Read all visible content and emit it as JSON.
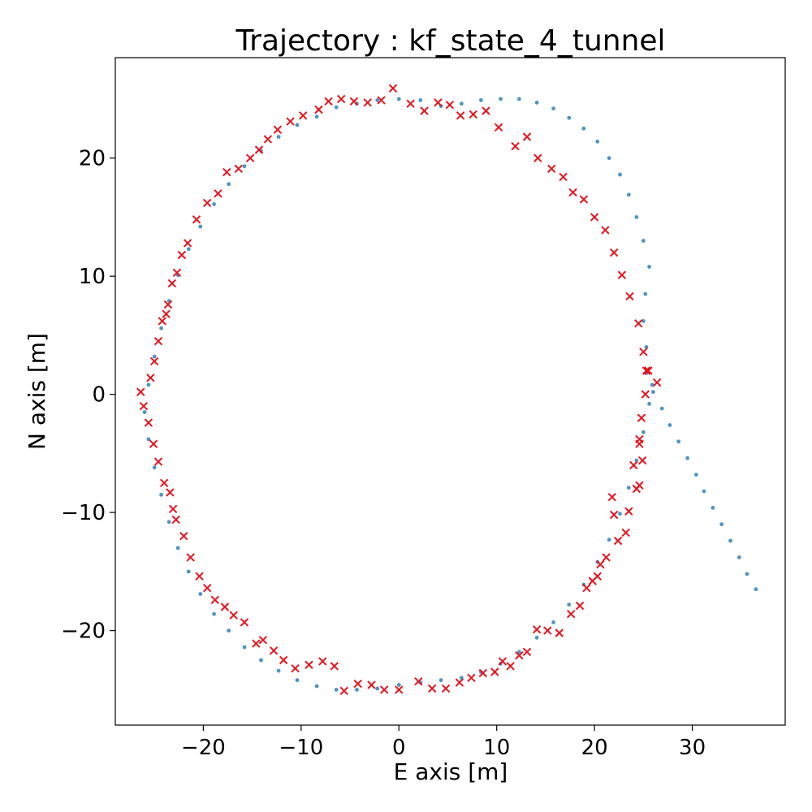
{
  "chart_data": {
    "type": "scatter",
    "title": "Trajectory : kf_state_4_tunnel",
    "xlabel": "E axis [m]",
    "ylabel": "N axis [m]",
    "xlim": [
      -29,
      39.5
    ],
    "ylim": [
      -28,
      28.5
    ],
    "xticks": [
      -20,
      -10,
      0,
      10,
      20,
      30
    ],
    "yticks": [
      -20,
      -10,
      0,
      10,
      20
    ],
    "xtick_labels": [
      "−20",
      "−10",
      "0",
      "10",
      "20",
      "30"
    ],
    "ytick_labels": [
      "−20",
      "−10",
      "0",
      "10",
      "20"
    ],
    "grid": false,
    "colors": {
      "estimate": "#4f94c4",
      "measurement": "#e8141e"
    },
    "series": [
      {
        "marker": "dot",
        "x": [
          36.5,
          35.6,
          34.8,
          33.9,
          33.0,
          32.1,
          31.2,
          30.4,
          29.5,
          28.6,
          27.7,
          26.9,
          26.0,
          25.3,
          25.3,
          25.0,
          25.2,
          25.6,
          25.0,
          24.3,
          23.5,
          22.6,
          21.5,
          20.3,
          18.9,
          17.4,
          15.8,
          14.1,
          12.3,
          10.4,
          8.4,
          6.4,
          4.3,
          2.2,
          0.0,
          -2.2,
          -4.3,
          -6.4,
          -8.4,
          -10.4,
          -12.3,
          -14.1,
          -15.8,
          -17.4,
          -18.9,
          -20.3,
          -21.5,
          -22.6,
          -23.5,
          -24.3,
          -25.0,
          -25.6,
          -26.0,
          -25.6,
          -25.0,
          -24.3,
          -23.5,
          -22.6,
          -21.5,
          -20.3,
          -18.9,
          -17.4,
          -15.8,
          -14.1,
          -12.3,
          -10.4,
          -8.4,
          -6.4,
          -4.3,
          -2.2,
          0.0,
          2.2,
          4.3,
          6.4,
          8.4,
          10.4,
          12.3,
          14.1,
          15.8,
          17.4,
          18.9,
          20.3,
          21.5,
          22.6,
          23.5,
          24.3,
          25.0,
          25.6,
          25.9
        ],
        "y": [
          -16.5,
          -15.2,
          -13.8,
          -12.4,
          -11.0,
          -9.6,
          -8.2,
          -6.8,
          -5.4,
          -4.0,
          -2.6,
          -1.2,
          0.2,
          1.8,
          4.0,
          6.2,
          8.5,
          10.8,
          13.0,
          15.0,
          16.9,
          18.6,
          20.0,
          21.4,
          22.5,
          23.4,
          24.2,
          24.7,
          25.0,
          25.0,
          24.9,
          24.6,
          24.4,
          24.9,
          25.0,
          24.9,
          24.6,
          24.3,
          23.5,
          22.8,
          21.8,
          20.6,
          19.3,
          17.8,
          16.1,
          14.2,
          12.3,
          10.1,
          7.9,
          5.6,
          3.2,
          0.8,
          -1.5,
          -3.8,
          -6.2,
          -8.5,
          -10.8,
          -13.0,
          -15.0,
          -16.9,
          -18.6,
          -20.0,
          -21.4,
          -22.5,
          -23.4,
          -24.2,
          -24.7,
          -25.0,
          -25.0,
          -24.9,
          -24.6,
          -24.4,
          -24.2,
          -24.0,
          -23.5,
          -22.8,
          -21.8,
          -20.6,
          -19.3,
          -17.8,
          -16.1,
          -14.2,
          -12.3,
          -10.1,
          -7.9,
          -5.6,
          -3.2,
          -0.8,
          0.8
        ]
      },
      {
        "marker": "x",
        "x": [
          26.4,
          25.5,
          25.2,
          24.8,
          24.6,
          24.9,
          24.6,
          24.3,
          24.0,
          24.6,
          23.5,
          23.2,
          22.4,
          22.0,
          21.8,
          21.2,
          20.6,
          20.3,
          19.8,
          19.2,
          18.5,
          17.6,
          16.4,
          15.2,
          14.1,
          13.1,
          12.3,
          11.4,
          10.6,
          9.8,
          8.6,
          7.4,
          6.2,
          4.8,
          3.4,
          2.0,
          0.0,
          -1.5,
          -2.8,
          -4.2,
          -5.6,
          -6.6,
          -7.8,
          -9.2,
          -10.6,
          -11.8,
          -12.8,
          -13.9,
          -14.6,
          -15.8,
          -16.9,
          -17.8,
          -18.8,
          -19.6,
          -20.4,
          -21.3,
          -22.0,
          -22.8,
          -23.1,
          -23.4,
          -24.0,
          -24.6,
          -25.1,
          -25.6,
          -26.1,
          -26.4,
          -25.4,
          -25.0,
          -24.6,
          -24.2,
          -23.8,
          -23.6,
          -23.2,
          -22.7,
          -22.2,
          -21.6,
          -20.7,
          -19.6,
          -18.5,
          -17.6,
          -16.4,
          -15.2,
          -14.3,
          -13.4,
          -12.4,
          -11.1,
          -9.8,
          -8.2,
          -7.2,
          -5.9,
          -4.6,
          -3.2,
          -1.8,
          -0.6,
          1.2,
          2.6,
          4.0,
          5.2,
          6.3,
          7.6,
          8.9,
          10.2,
          11.9,
          13.1,
          14.2,
          15.6,
          16.8,
          17.8,
          18.9,
          20.0,
          21.1,
          22.0,
          22.8,
          23.6,
          24.5,
          25.0,
          25.3
        ],
        "y": [
          1.0,
          2.0,
          0.0,
          -2.0,
          -4.2,
          -5.6,
          -7.7,
          -8.0,
          -6.0,
          -3.8,
          -9.9,
          -11.7,
          -12.4,
          -10.2,
          -8.7,
          -13.8,
          -14.4,
          -15.4,
          -15.8,
          -16.4,
          -17.9,
          -18.6,
          -20.2,
          -20.0,
          -19.9,
          -21.8,
          -22.1,
          -23.0,
          -22.6,
          -23.5,
          -23.6,
          -24.0,
          -24.4,
          -24.9,
          -24.9,
          -24.3,
          -25.0,
          -25.0,
          -24.6,
          -24.5,
          -25.1,
          -23.0,
          -22.6,
          -22.9,
          -23.2,
          -22.5,
          -21.7,
          -20.8,
          -21.1,
          -19.3,
          -18.7,
          -18.0,
          -17.4,
          -16.4,
          -15.4,
          -13.8,
          -12.0,
          -10.6,
          -9.7,
          -8.3,
          -7.5,
          -5.7,
          -4.2,
          -2.4,
          -1.0,
          0.2,
          1.4,
          2.8,
          4.5,
          6.2,
          6.8,
          7.6,
          9.4,
          10.3,
          11.8,
          12.8,
          14.8,
          16.2,
          17.0,
          18.8,
          19.1,
          20.0,
          20.7,
          21.6,
          22.4,
          23.1,
          23.6,
          24.1,
          24.8,
          25.0,
          24.8,
          24.7,
          24.9,
          25.9,
          24.6,
          24.0,
          24.7,
          24.5,
          23.6,
          23.7,
          24.0,
          22.6,
          21.0,
          21.8,
          20.0,
          19.1,
          18.4,
          17.1,
          16.5,
          15.0,
          13.9,
          12.0,
          10.1,
          8.3,
          6.0,
          3.6,
          2.0
        ]
      }
    ]
  }
}
